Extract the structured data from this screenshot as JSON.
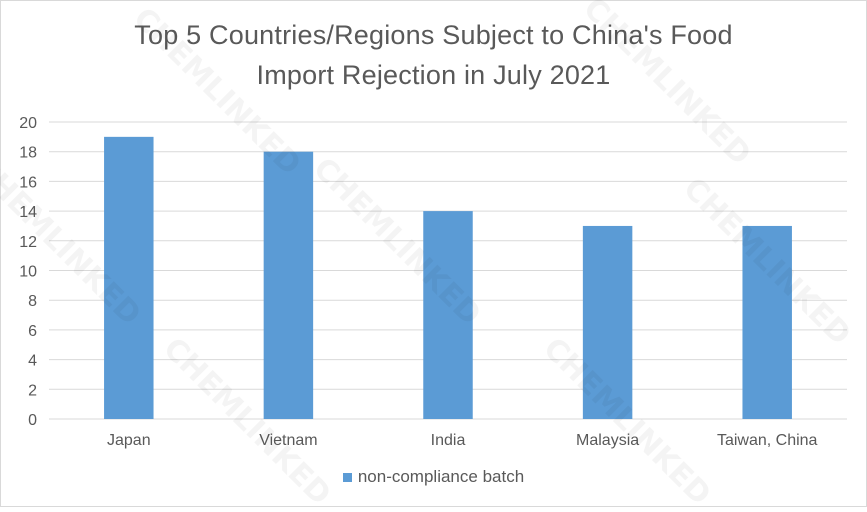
{
  "chart_data": {
    "type": "bar",
    "title_lines": [
      "Top 5 Countries/Regions Subject to China's Food",
      "Import Rejection in July 2021"
    ],
    "categories": [
      "Japan",
      "Vietnam",
      "India",
      "Malaysia",
      "Taiwan, China"
    ],
    "series": [
      {
        "name": "non-compliance batch",
        "values": [
          19,
          18,
          14,
          13,
          13
        ],
        "color": "#5b9bd5"
      }
    ],
    "ylim": [
      0,
      20
    ],
    "yticks": [
      0,
      2,
      4,
      6,
      8,
      10,
      12,
      14,
      16,
      18,
      20
    ],
    "grid": true,
    "legend_position": "bottom",
    "colors": {
      "grid": "#d9d9d9",
      "text": "#595959"
    }
  },
  "watermark": {
    "text": "CHEMLINKED"
  }
}
